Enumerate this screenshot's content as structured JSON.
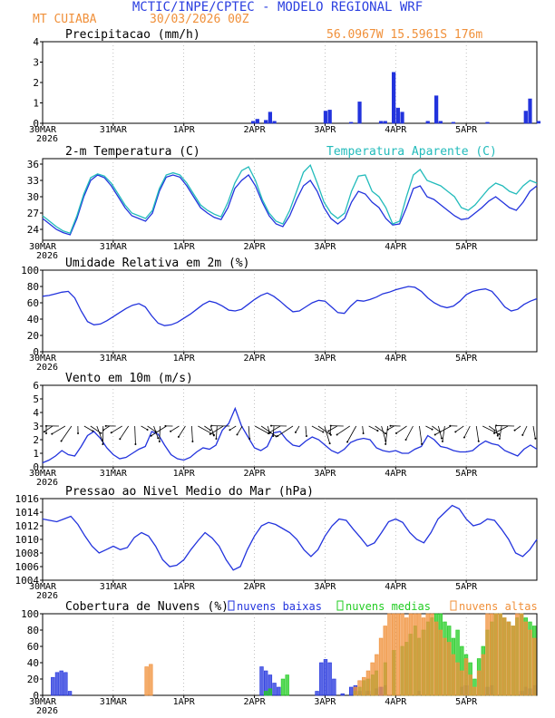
{
  "header": {
    "title": "MCTIC/INPE/CPTEC - MODELO REGIONAL WRF",
    "location": "MT CUIABA",
    "run": "30/03/2026 00Z",
    "coords": "56.0967W 15.5961S 176m"
  },
  "colors": {
    "title": "#2b3fe0",
    "orange": "#f0903a",
    "blue": "#2233dd",
    "cyan": "#22bbbb",
    "green": "#22cc22",
    "black": "#000000",
    "grid": "#999999"
  },
  "days": [
    "30MAR",
    "31MAR",
    "1APR",
    "2APR",
    "3APR",
    "4APR",
    "5APR"
  ],
  "year_label": "2026",
  "chart_data": [
    {
      "id": "precip",
      "type": "bar",
      "title": "Precipitacao (mm/h)",
      "ylim": [
        0,
        4
      ],
      "yticks": [
        "0",
        "1",
        "2",
        "3",
        "4"
      ],
      "series": [
        {
          "name": "Precipitacao",
          "color": "#2233dd",
          "points": [
            [
              49,
              0.1
            ],
            [
              50,
              0.2
            ],
            [
              52,
              0.15
            ],
            [
              53,
              0.55
            ],
            [
              54,
              0.1
            ],
            [
              66,
              0.6
            ],
            [
              67,
              0.65
            ],
            [
              72,
              0.05
            ],
            [
              74,
              1.05
            ],
            [
              79,
              0.1
            ],
            [
              80,
              0.1
            ],
            [
              82,
              2.5
            ],
            [
              83,
              0.75
            ],
            [
              84,
              0.55
            ],
            [
              90,
              0.1
            ],
            [
              92,
              1.35
            ],
            [
              93,
              0.1
            ],
            [
              96,
              0.05
            ],
            [
              104,
              0.05
            ],
            [
              113,
              0.6
            ],
            [
              114,
              1.2
            ],
            [
              116,
              0.1
            ]
          ]
        }
      ]
    },
    {
      "id": "temp",
      "type": "line",
      "title": "2-m Temperatura (C)",
      "title2": "Temperatura Aparente (C)",
      "ylim": [
        22,
        37
      ],
      "yticks": [
        "24",
        "27",
        "30",
        "33",
        "36"
      ],
      "series": [
        {
          "name": "2-m Temperatura",
          "color": "#2233dd",
          "values": [
            26,
            25,
            24,
            23.4,
            23,
            26,
            30,
            33,
            34,
            33.5,
            32,
            30,
            28,
            26.5,
            26,
            25.5,
            27,
            31,
            33.6,
            34,
            33.6,
            32,
            30,
            28,
            27,
            26.2,
            25.8,
            28,
            31.5,
            33,
            34,
            32,
            29,
            26.5,
            25,
            24.5,
            26.5,
            29.5,
            32,
            33,
            31,
            28,
            26,
            25,
            26,
            29,
            31,
            30.5,
            29,
            28,
            26,
            24.8,
            25,
            28,
            31.5,
            32,
            30,
            29.5,
            28.5,
            27.5,
            26.5,
            25.8,
            26,
            27,
            28,
            29.2,
            30,
            29,
            28,
            27.5,
            29,
            31,
            32
          ]
        },
        {
          "name": "Temperatura Aparente",
          "color": "#22bbbb",
          "values": [
            26.5,
            25.5,
            24.5,
            23.7,
            23.3,
            26.5,
            30.5,
            33.5,
            34.2,
            33.8,
            32.5,
            30.5,
            28.5,
            27,
            26.5,
            26,
            27.5,
            31.5,
            34,
            34.4,
            34,
            32.5,
            30.5,
            28.5,
            27.5,
            26.8,
            26.3,
            29,
            32.5,
            34.8,
            35.5,
            33,
            29.5,
            27,
            25.5,
            25,
            27.5,
            31,
            34.5,
            35.8,
            32.5,
            29,
            27,
            26,
            27,
            31,
            33.8,
            34,
            31,
            30,
            28,
            25,
            25.5,
            30,
            34,
            35,
            33,
            32.5,
            32,
            31,
            30,
            28,
            27.5,
            28.5,
            30,
            31.5,
            32.5,
            32,
            31,
            30.5,
            32,
            33,
            32.5
          ]
        }
      ]
    },
    {
      "id": "rh",
      "type": "line",
      "title": "Umidade Relativa em 2m (%)",
      "ylim": [
        0,
        100
      ],
      "yticks": [
        "0",
        "20",
        "40",
        "60",
        "80",
        "100"
      ],
      "series": [
        {
          "name": "Umidade Relativa",
          "color": "#2233dd",
          "values": [
            68,
            69,
            71,
            73,
            74,
            66,
            50,
            37,
            33,
            34,
            38,
            43,
            48,
            53,
            57,
            59,
            55,
            44,
            35,
            32,
            33,
            36,
            41,
            46,
            52,
            58,
            62,
            60,
            56,
            51,
            50,
            52,
            58,
            64,
            69,
            72,
            68,
            62,
            55,
            49,
            50,
            55,
            60,
            63,
            62,
            55,
            48,
            47,
            56,
            63,
            62,
            64,
            67,
            71,
            73,
            76,
            78,
            80,
            79,
            74,
            66,
            60,
            56,
            54,
            56,
            62,
            70,
            74,
            76,
            77,
            74,
            65,
            55,
            50,
            52,
            58,
            62,
            65
          ]
        }
      ]
    },
    {
      "id": "wind",
      "type": "line",
      "title": "Vento em 10m (m/s)",
      "ylim": [
        0,
        6
      ],
      "yticks": [
        "0",
        "1",
        "2",
        "3",
        "4",
        "5",
        "6"
      ],
      "series": [
        {
          "name": "Vento em 10m",
          "color": "#2233dd",
          "values": [
            0.3,
            0.5,
            0.8,
            1.2,
            0.9,
            0.8,
            1.5,
            2.3,
            2.6,
            2.1,
            1.4,
            0.9,
            0.6,
            0.7,
            1.0,
            1.3,
            1.5,
            2.6,
            2.4,
            1.6,
            0.9,
            0.6,
            0.5,
            0.7,
            1.1,
            1.4,
            1.3,
            1.6,
            2.7,
            3.2,
            4.3,
            3.0,
            2.2,
            1.4,
            1.2,
            1.5,
            2.5,
            2.6,
            2.0,
            1.6,
            1.5,
            1.9,
            2.2,
            2.0,
            1.6,
            1.2,
            1.0,
            1.3,
            1.8,
            2.0,
            2.1,
            2.0,
            1.4,
            1.2,
            1.1,
            1.2,
            1.0,
            1.0,
            1.3,
            1.5,
            2.3,
            2.0,
            1.5,
            1.4,
            1.2,
            1.1,
            1.1,
            1.2,
            1.6,
            1.9,
            1.7,
            1.6,
            1.2,
            1.0,
            0.8,
            1.3,
            1.6,
            1.3
          ]
        }
      ]
    },
    {
      "id": "pres",
      "type": "line",
      "title": "Pressao ao Nivel Medio do Mar (hPa)",
      "ylim": [
        1004,
        1016
      ],
      "yticks": [
        "1004",
        "1006",
        "1008",
        "1010",
        "1012",
        "1014",
        "1016"
      ],
      "series": [
        {
          "name": "Pressao",
          "color": "#2233dd",
          "values": [
            1013,
            1012.8,
            1012.6,
            1013,
            1013.4,
            1012.2,
            1010.5,
            1009,
            1008,
            1008.5,
            1009,
            1008.5,
            1008.8,
            1010.3,
            1011,
            1010.5,
            1009,
            1007,
            1006,
            1006.2,
            1007,
            1008.5,
            1009.8,
            1011,
            1010.2,
            1009,
            1007,
            1005.5,
            1006,
            1008.5,
            1010.5,
            1012,
            1012.5,
            1012.2,
            1011.6,
            1011,
            1010,
            1008.5,
            1007.5,
            1008.5,
            1010.5,
            1012,
            1013,
            1012.8,
            1011.5,
            1010.3,
            1009,
            1009.5,
            1011,
            1012.6,
            1013,
            1012.5,
            1011,
            1010,
            1009.5,
            1011,
            1013,
            1014,
            1015,
            1014.5,
            1013,
            1012,
            1012.3,
            1013,
            1012.8,
            1011.5,
            1010,
            1008,
            1007.5,
            1008.5,
            1010
          ]
        }
      ]
    },
    {
      "id": "clouds",
      "type": "bar",
      "title": "Cobertura de Nuvens (%)",
      "ylim": [
        0,
        100
      ],
      "yticks": [
        "0",
        "20",
        "40",
        "60",
        "80",
        "100"
      ],
      "legend": [
        "nuvens baixas",
        "nuvens medias",
        "nuvens altas"
      ],
      "series": [
        {
          "name": "nuvens baixas",
          "color": "#2233dd",
          "points": [
            [
              2,
              22
            ],
            [
              3,
              28
            ],
            [
              4,
              30
            ],
            [
              5,
              28
            ],
            [
              6,
              5
            ],
            [
              51,
              35
            ],
            [
              52,
              30
            ],
            [
              53,
              25
            ],
            [
              54,
              15
            ],
            [
              55,
              10
            ],
            [
              64,
              5
            ],
            [
              65,
              40
            ],
            [
              66,
              44
            ],
            [
              67,
              40
            ],
            [
              68,
              20
            ],
            [
              70,
              2
            ],
            [
              72,
              10
            ],
            [
              73,
              12
            ],
            [
              74,
              5
            ],
            [
              76,
              5
            ],
            [
              78,
              8
            ],
            [
              79,
              10
            ],
            [
              80,
              12
            ],
            [
              88,
              5
            ],
            [
              98,
              10
            ],
            [
              99,
              12
            ],
            [
              104,
              10
            ],
            [
              105,
              12
            ],
            [
              112,
              5
            ],
            [
              113,
              10
            ],
            [
              114,
              8
            ],
            [
              115,
              12
            ]
          ]
        },
        {
          "name": "nuvens medias",
          "color": "#22cc22",
          "points": [
            [
              52,
              5
            ],
            [
              53,
              8
            ],
            [
              56,
              20
            ],
            [
              57,
              25
            ],
            [
              73,
              5
            ],
            [
              74,
              10
            ],
            [
              75,
              18
            ],
            [
              76,
              20
            ],
            [
              77,
              25
            ],
            [
              78,
              30
            ],
            [
              80,
              40
            ],
            [
              82,
              55
            ],
            [
              84,
              60
            ],
            [
              85,
              65
            ],
            [
              86,
              75
            ],
            [
              87,
              85
            ],
            [
              88,
              70
            ],
            [
              89,
              80
            ],
            [
              90,
              90
            ],
            [
              91,
              95
            ],
            [
              92,
              100
            ],
            [
              93,
              100
            ],
            [
              94,
              90
            ],
            [
              95,
              85
            ],
            [
              96,
              70
            ],
            [
              97,
              80
            ],
            [
              98,
              60
            ],
            [
              99,
              50
            ],
            [
              100,
              40
            ],
            [
              101,
              20
            ],
            [
              102,
              45
            ],
            [
              103,
              60
            ],
            [
              104,
              80
            ],
            [
              105,
              90
            ],
            [
              106,
              100
            ],
            [
              107,
              100
            ],
            [
              108,
              95
            ],
            [
              109,
              90
            ],
            [
              110,
              85
            ],
            [
              111,
              95
            ],
            [
              112,
              100
            ],
            [
              113,
              95
            ],
            [
              114,
              90
            ],
            [
              115,
              85
            ]
          ]
        },
        {
          "name": "nuvens altas",
          "color": "#f0903a",
          "points": [
            [
              24,
              35
            ],
            [
              25,
              38
            ],
            [
              73,
              10
            ],
            [
              74,
              18
            ],
            [
              75,
              22
            ],
            [
              76,
              30
            ],
            [
              77,
              40
            ],
            [
              78,
              50
            ],
            [
              79,
              70
            ],
            [
              80,
              85
            ],
            [
              81,
              100
            ],
            [
              82,
              100
            ],
            [
              83,
              100
            ],
            [
              84,
              100
            ],
            [
              85,
              95
            ],
            [
              86,
              100
            ],
            [
              87,
              100
            ],
            [
              88,
              100
            ],
            [
              89,
              95
            ],
            [
              90,
              100
            ],
            [
              91,
              100
            ],
            [
              92,
              90
            ],
            [
              93,
              80
            ],
            [
              94,
              70
            ],
            [
              95,
              65
            ],
            [
              96,
              50
            ],
            [
              97,
              40
            ],
            [
              98,
              30
            ],
            [
              99,
              45
            ],
            [
              100,
              25
            ],
            [
              101,
              10
            ],
            [
              102,
              30
            ],
            [
              103,
              50
            ],
            [
              104,
              100
            ],
            [
              105,
              100
            ],
            [
              106,
              100
            ],
            [
              107,
              100
            ],
            [
              108,
              95
            ],
            [
              109,
              90
            ],
            [
              110,
              85
            ],
            [
              111,
              100
            ],
            [
              112,
              100
            ],
            [
              113,
              90
            ],
            [
              114,
              80
            ],
            [
              115,
              70
            ]
          ]
        }
      ]
    }
  ]
}
